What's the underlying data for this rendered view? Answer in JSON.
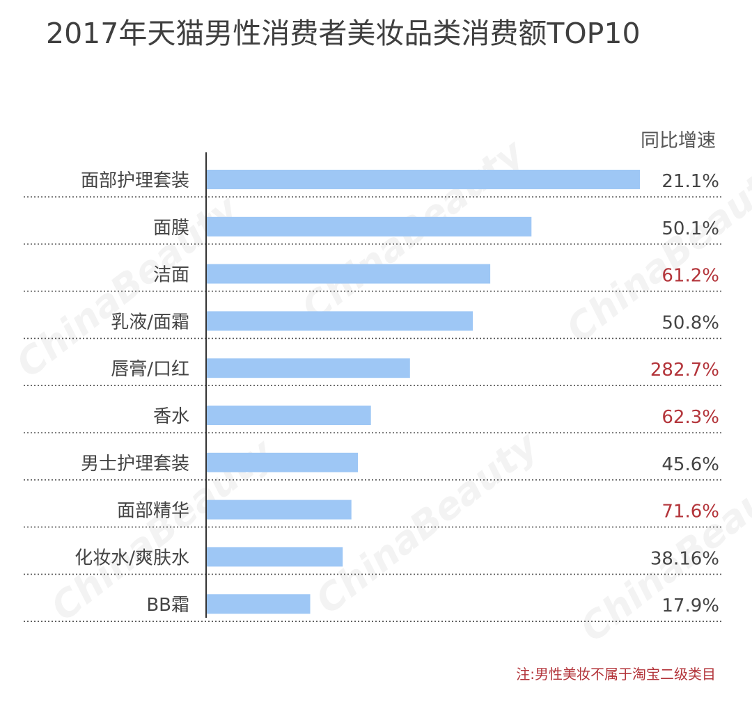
{
  "chart_data": {
    "type": "bar",
    "orientation": "horizontal",
    "title": "2017年天猫男性消费者美妆品类消费额TOP10",
    "categories": [
      "面部护理套装",
      "面膜",
      "洁面",
      "乳液/面霜",
      "唇膏/口红",
      "香水",
      "男士护理套装",
      "面部精华",
      "化妆水/爽肤水",
      "BB霜"
    ],
    "values": [
      100,
      75,
      65.5,
      61.5,
      47,
      38,
      35,
      33.5,
      31.5,
      24
    ],
    "value_axis": "unlabeled relative scale",
    "xlim": [
      0,
      100
    ],
    "growth_header": "同比增速",
    "growth_labels": [
      "21.1%",
      "50.1%",
      "61.2%",
      "50.8%",
      "282.7%",
      "62.3%",
      "45.6%",
      "71.6%",
      "38.16%",
      "17.9%"
    ],
    "growth_highlight": [
      false,
      false,
      true,
      false,
      true,
      true,
      false,
      true,
      false,
      false
    ],
    "grid": false,
    "row_separator": "dotted"
  },
  "footnote": "注:男性美妆不属于淘宝二级类目",
  "watermark": "ChinaBeauty",
  "colors": {
    "bar": "#9ec7f5",
    "text": "#444444",
    "highlight": "#b3343a",
    "axis": "#333333",
    "separator": "#555555"
  }
}
